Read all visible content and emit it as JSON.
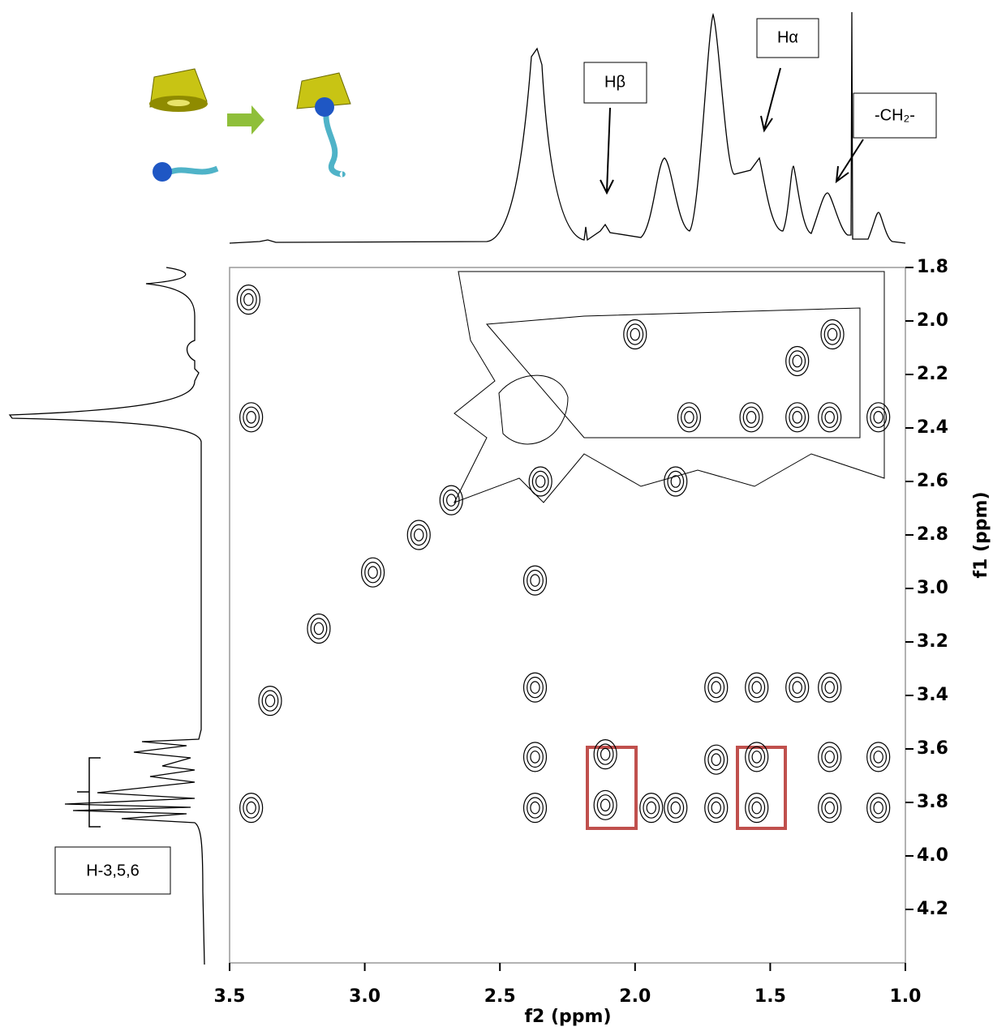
{
  "chart_data": {
    "type": "contour",
    "xlabel": "f2 (ppm)",
    "ylabel": "f1 (ppm)",
    "xlim": [
      3.5,
      1.0
    ],
    "ylim": [
      1.8,
      4.4
    ],
    "xticks": [
      3.5,
      {
        "value": 3,
        "label": "3.0"
      },
      2.5,
      {
        "value": 2,
        "label": "2.0"
      },
      1.5,
      {
        "value": 1,
        "label": "1.0"
      }
    ],
    "yticks": [
      1.8,
      {
        "value": 2,
        "label": "2.0"
      },
      2.2,
      2.4,
      2.6,
      2.8,
      {
        "value": 3,
        "label": "3.0"
      },
      3.2,
      3.4,
      3.6,
      3.8,
      {
        "value": 4,
        "label": "4.0"
      },
      4.2
    ],
    "x": [
      3.42,
      2.37,
      2.37,
      2.37,
      2.11,
      2.11,
      1.7,
      1.7,
      1.7,
      1.55,
      1.55,
      1.55,
      1.4,
      1.28,
      1.28,
      1.28,
      1.1,
      1.1,
      1.1,
      1.85,
      1.94,
      3.42,
      3.35,
      2.97,
      3.17,
      2.8,
      2.68,
      1.57,
      1.4,
      1.28,
      1.8,
      2.35,
      2.0,
      2.37,
      3.43,
      1.4,
      1.27,
      1.85
    ],
    "values": [
      2.36,
      3.37,
      3.63,
      3.82,
      3.62,
      3.81,
      3.37,
      3.64,
      3.82,
      3.37,
      3.63,
      3.82,
      3.37,
      3.37,
      3.63,
      3.82,
      3.63,
      3.82,
      2.36,
      3.82,
      3.82,
      3.82,
      3.42,
      2.94,
      3.15,
      2.8,
      2.67,
      2.36,
      2.36,
      2.36,
      2.36,
      2.6,
      2.05,
      2.97,
      1.92,
      2.15,
      2.05,
      2.6
    ],
    "color": "#000000",
    "annotations": [
      "Hβ",
      "Hα",
      "-CH₂-",
      "H-3,5,6"
    ]
  }
}
